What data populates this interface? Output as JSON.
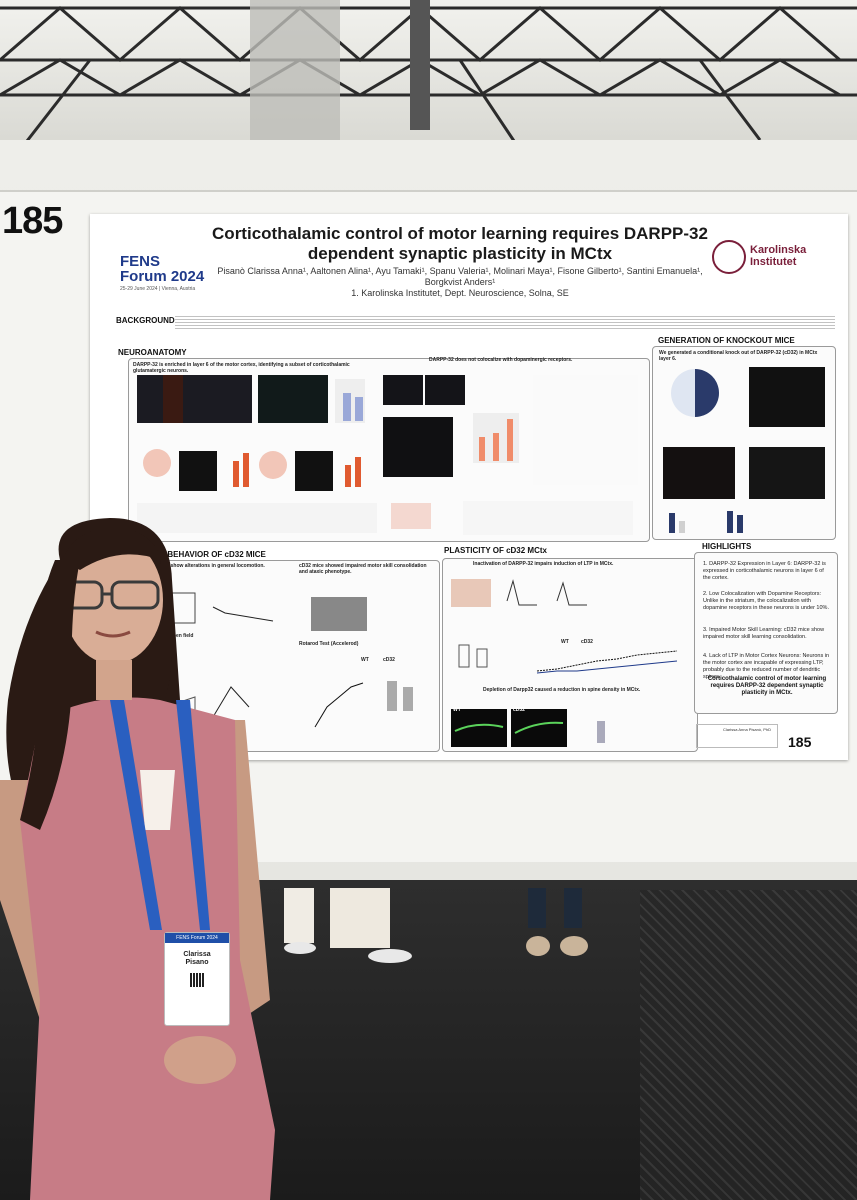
{
  "scene": {
    "board_number": "185",
    "colors": {
      "poster_bg": "#ffffff",
      "lanyard": "#2a5fc0",
      "dress": "#c77c86",
      "floor": "#222222"
    }
  },
  "poster": {
    "conference_name": "FENS",
    "conference_sub": "Forum 2024",
    "conference_dates": "25-29 June 2024 | Vienna, Austria",
    "institute_line1": "Karolinska",
    "institute_line2": "Institutet",
    "title_line1": "Corticothalamic control of motor learning requires DARPP-32",
    "title_line2": "dependent synaptic plasticity in MCtx",
    "authors": "Pisanò Clarissa Anna¹, Aaltonen Alina¹, Ayu Tamaki¹, Spanu Valeria¹, Molinari Maya¹, Fisone Gilberto¹, Santini Emanuela¹, Borgkvist Anders¹",
    "affiliation": "1. Karolinska Institutet, Dept. Neuroscience, Solna, SE",
    "sections": {
      "background": "BACKGROUND",
      "neuroanatomy": "NEUROANATOMY",
      "neuro_sub1": "DARPP-32 is enriched in layer 6 of the motor cortex, identifying a subset of corticothalamic glutamatergic neurons.",
      "neuro_sub2": "DARPP-32 does not colocalize with dopaminergic receptors.",
      "knockout": "GENERATION OF KNOCKOUT MICE",
      "knockout_sub": "We generated a conditional knock out of DARPP-32 (cD32) in MCtx layer 6.",
      "behavior": "ER BEHAVIOR OF cD32 MICE",
      "behavior_sub1": "d not show alterations in general locomotion.",
      "behavior_sub2": "cD32 mice showed impaired motor skill consolidation and ataxic phenotype.",
      "plasticity": "PLASTICITY OF cD32 MCtx",
      "plasticity_sub": "Inactivation of DARPP-32 impairs induction of LTP in MCtx.",
      "spine_sub": "Depletion of Darpp32 caused a reduction in spine density in MCtx.",
      "highlights": "HIGHLIGHTS"
    },
    "labels": {
      "open_field": "Open field",
      "rotarod": "Rotarod Test (Accelerod)",
      "wt": "WT",
      "cd32": "cD32",
      "wt_panel": "WT",
      "cd32_panel": "cD32",
      "latency_axis": "Latency off all (sec)",
      "learning_axis": "Learning index",
      "ltp_axis": "% change from baseline"
    },
    "highlights": [
      "1. DARPP-32 Expression in Layer 6: DARPP-32 is expressed in corticothalamic neurons in layer 6 of the cortex.",
      "2. Low Colocalization with Dopamine Receptors: Unlike in the striatum, the colocalization with dopamine receptors in these neurons is under 10%.",
      "3. Impaired Motor Skill Learning: cD32 mice show impaired motor skill learning consolidation.",
      "4. Lack of LTP in Motor Cortex Neurons: Neurons in the motor cortex are incapable of expressing LTP, probably due to the reduced number of dendritic spines."
    ],
    "conclusion": "Corticothalamic control of motor learning requires DARPP-32 dependent synaptic plasticity in MCtx.",
    "poster_number": "185",
    "contact_name": "Clarissa Anna Pisanò, PhD"
  },
  "badge": {
    "event": "FENS Forum 2024",
    "first_name": "Clarissa",
    "last_name": "Pisano"
  }
}
